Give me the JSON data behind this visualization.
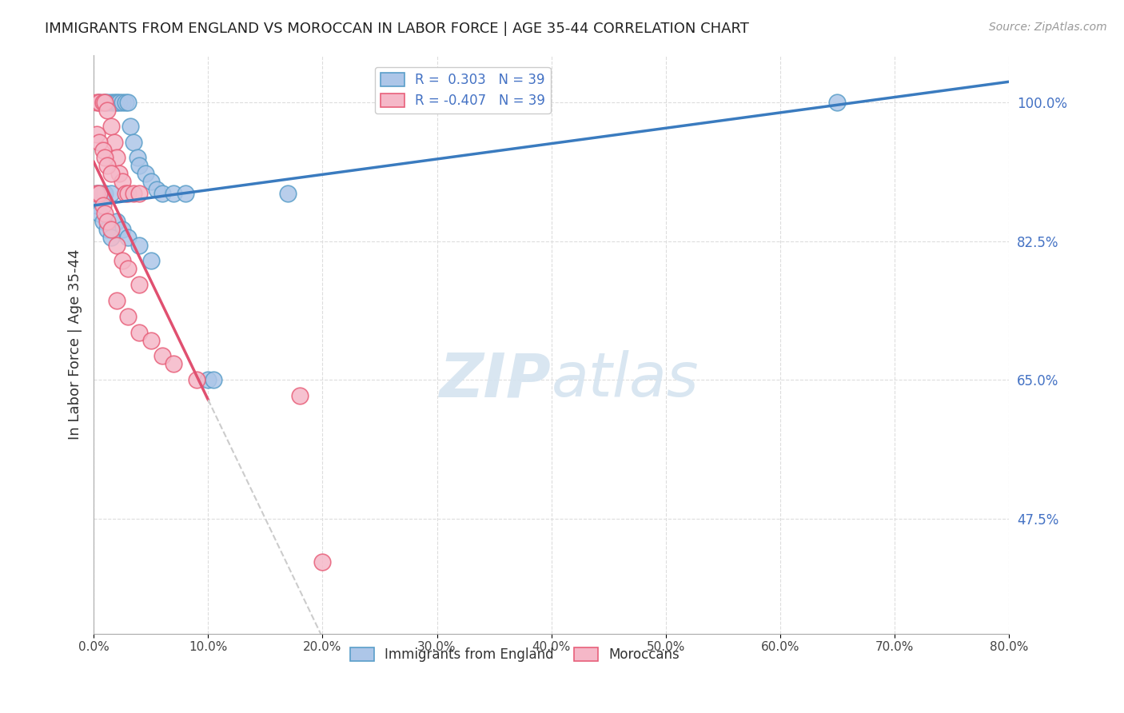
{
  "title": "IMMIGRANTS FROM ENGLAND VS MOROCCAN IN LABOR FORCE | AGE 35-44 CORRELATION CHART",
  "source": "Source: ZipAtlas.com",
  "xlabel_vals": [
    0.0,
    10.0,
    20.0,
    30.0,
    40.0,
    50.0,
    60.0,
    70.0,
    80.0
  ],
  "ylabel_vals_right": [
    100.0,
    82.5,
    65.0,
    47.5
  ],
  "ylabel_label": "In Labor Force | Age 35-44",
  "legend_entries": [
    {
      "label": "R =  0.303   N = 39"
    },
    {
      "label": "R = -0.407   N = 39"
    }
  ],
  "blue_scatter_x": [
    0.5,
    1.0,
    1.2,
    1.5,
    1.8,
    2.0,
    2.2,
    2.5,
    2.8,
    3.0,
    3.2,
    3.5,
    3.8,
    4.0,
    4.5,
    5.0,
    5.5,
    6.0,
    7.0,
    8.0,
    0.3,
    0.5,
    0.8,
    1.0,
    1.5,
    2.0,
    2.5,
    3.0,
    4.0,
    5.0,
    0.3,
    0.5,
    0.8,
    1.2,
    1.5,
    10.0,
    10.5,
    17.0,
    65.0
  ],
  "blue_scatter_y": [
    100.0,
    100.0,
    100.0,
    100.0,
    100.0,
    100.0,
    100.0,
    100.0,
    100.0,
    100.0,
    97.0,
    95.0,
    93.0,
    92.0,
    91.0,
    90.0,
    89.0,
    88.5,
    88.5,
    88.5,
    88.5,
    88.5,
    88.5,
    88.5,
    88.5,
    85.0,
    84.0,
    83.0,
    82.0,
    80.0,
    87.0,
    86.0,
    85.0,
    84.0,
    83.0,
    65.0,
    65.0,
    88.5,
    100.0
  ],
  "pink_scatter_x": [
    0.3,
    0.5,
    0.8,
    1.0,
    1.2,
    1.5,
    1.8,
    2.0,
    2.2,
    2.5,
    2.8,
    3.0,
    3.5,
    4.0,
    0.3,
    0.5,
    0.8,
    1.0,
    1.2,
    1.5,
    0.3,
    0.5,
    0.8,
    1.0,
    1.2,
    1.5,
    2.0,
    2.5,
    3.0,
    4.0,
    2.0,
    3.0,
    4.0,
    5.0,
    6.0,
    7.0,
    9.0,
    18.0,
    20.0
  ],
  "pink_scatter_y": [
    100.0,
    100.0,
    100.0,
    100.0,
    99.0,
    97.0,
    95.0,
    93.0,
    91.0,
    90.0,
    88.5,
    88.5,
    88.5,
    88.5,
    96.0,
    95.0,
    94.0,
    93.0,
    92.0,
    91.0,
    88.5,
    88.5,
    87.0,
    86.0,
    85.0,
    84.0,
    82.0,
    80.0,
    79.0,
    77.0,
    75.0,
    73.0,
    71.0,
    70.0,
    68.0,
    67.0,
    65.0,
    63.0,
    42.0
  ],
  "blue_line_intercept": 87.0,
  "blue_line_slope": 0.195,
  "pink_line_intercept": 92.5,
  "pink_line_slope": -3.0,
  "pink_solid_end": 10.0,
  "pink_dashed_end": 80.0,
  "xmin": 0.0,
  "xmax": 80.0,
  "ymin": 33.0,
  "ymax": 106.0,
  "grid_color": "#dddddd",
  "blue_dot_face": "#adc6e8",
  "blue_dot_edge": "#5a9ec9",
  "pink_dot_face": "#f5b8c8",
  "pink_dot_edge": "#e8607a",
  "blue_line_color": "#3a7bbf",
  "pink_line_color": "#e05070",
  "dashed_line_color": "#cccccc",
  "watermark_zip": "ZIP",
  "watermark_atlas": "atlas",
  "watermark_color": "#d5e4f0"
}
